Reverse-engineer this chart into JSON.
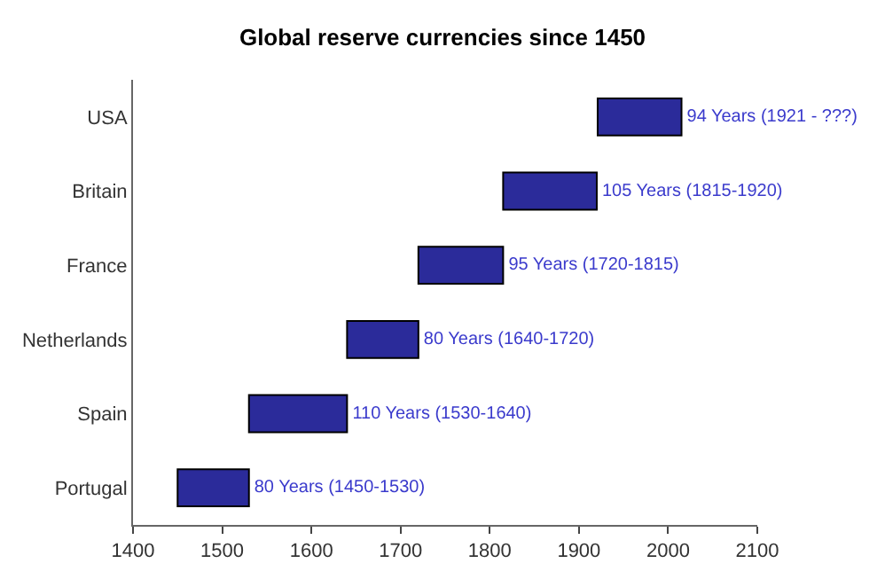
{
  "chart_data": {
    "type": "bar",
    "orientation": "horizontal",
    "title": "Global reserve currencies since 1450",
    "categories": [
      "USA",
      "Britain",
      "France",
      "Netherlands",
      "Spain",
      "Portugal"
    ],
    "base": [
      1921,
      1815,
      1720,
      1640,
      1530,
      1450
    ],
    "values": [
      94,
      105,
      95,
      80,
      110,
      80
    ],
    "value_labels": [
      "94 Years (1921 - ???)",
      "105 Years (1815-1920)",
      "95 Years (1720-1815)",
      "80 Years (1640-1720)",
      "110 Years (1530-1640)",
      "80 Years (1450-1530)"
    ],
    "color": "#2b2b9a",
    "xlim": [
      1400,
      2100
    ],
    "xticks": [
      1400,
      1500,
      1600,
      1700,
      1800,
      1900,
      2000,
      2100
    ]
  }
}
